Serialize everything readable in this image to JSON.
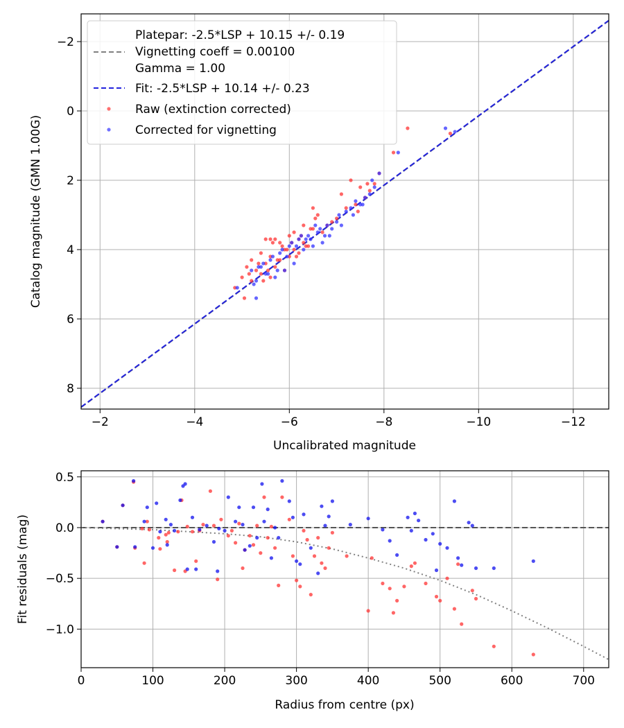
{
  "chart_data": [
    {
      "type": "scatter",
      "title": "",
      "xlabel": "Uncalibrated magnitude",
      "ylabel": "Catalog magnitude (GMN 1.00G)",
      "xlim": [
        -1.6,
        -12.75
      ],
      "ylim": [
        8.6,
        -2.8
      ],
      "xticks": [
        -2,
        -4,
        -6,
        -8,
        -10,
        -12
      ],
      "xtick_labels": [
        "−2",
        "−4",
        "−6",
        "−8",
        "−10",
        "−12"
      ],
      "yticks": [
        -2,
        0,
        2,
        4,
        6,
        8
      ],
      "ytick_labels": [
        "−2",
        "0",
        "2",
        "4",
        "6",
        "8"
      ],
      "grid": true,
      "legend": {
        "placement": "top-left",
        "entries": [
          {
            "label_lines": [
              "Platepar: -2.5*LSP + 10.15 +/- 0.19",
              "Vignetting coeff = 0.00100",
              "Gamma = 1.00"
            ],
            "style": "dashed",
            "color": "#808080"
          },
          {
            "label_lines": [
              "Fit: -2.5*LSP + 10.14 +/- 0.23"
            ],
            "style": "dashed",
            "color": "#2222dd"
          },
          {
            "label_lines": [
              "Raw (extinction corrected)"
            ],
            "style": "marker",
            "color": "#ff3333"
          },
          {
            "label_lines": [
              "Corrected for vignetting"
            ],
            "style": "marker",
            "color": "#3333ff"
          }
        ]
      },
      "series": [
        {
          "name": "Platepar",
          "kind": "line",
          "color": "#808080",
          "dash": "dashed",
          "x": [
            -1.6,
            -12.75
          ],
          "y": [
            8.55,
            -2.6
          ]
        },
        {
          "name": "Fit",
          "kind": "line",
          "color": "#2222dd",
          "dash": "dashed",
          "x": [
            -1.6,
            -12.75
          ],
          "y": [
            8.54,
            -2.61
          ]
        },
        {
          "name": "Raw (extinction corrected)",
          "kind": "scatter",
          "color": "#ff3333",
          "x": [
            -5.0,
            -5.1,
            -5.2,
            -5.2,
            -5.3,
            -5.4,
            -5.4,
            -5.5,
            -5.5,
            -5.6,
            -5.6,
            -5.7,
            -5.7,
            -5.8,
            -5.8,
            -5.9,
            -5.9,
            -6.0,
            -6.0,
            -6.1,
            -6.1,
            -6.2,
            -6.2,
            -6.3,
            -6.3,
            -6.4,
            -6.5,
            -6.5,
            -6.6,
            -6.7,
            -6.8,
            -6.9,
            -7.0,
            -7.2,
            -7.3,
            -7.4,
            -7.5,
            -7.6,
            -7.7,
            -7.8,
            -7.9,
            -8.2,
            -8.5,
            -9.4,
            -5.05,
            -5.15,
            -5.35,
            -5.45,
            -5.55,
            -5.65,
            -5.75,
            -5.85,
            -5.95,
            -6.05,
            -6.15,
            -6.25,
            -6.35,
            -6.45,
            -6.55,
            -7.1,
            -7.45,
            -7.65,
            -4.85,
            -5.6
          ],
          "y": [
            4.8,
            4.5,
            4.3,
            4.9,
            4.6,
            4.1,
            4.7,
            3.7,
            4.4,
            4.2,
            4.8,
            3.7,
            4.5,
            3.8,
            4.3,
            4.0,
            4.6,
            3.6,
            4.2,
            3.5,
            4.0,
            3.7,
            4.1,
            3.3,
            3.8,
            3.9,
            2.8,
            3.4,
            3.0,
            3.5,
            3.3,
            3.2,
            3.1,
            2.8,
            2.0,
            2.7,
            2.2,
            2.5,
            2.3,
            2.1,
            1.8,
            1.2,
            0.5,
            0.65,
            5.4,
            4.7,
            4.4,
            4.9,
            4.6,
            3.8,
            4.3,
            3.9,
            4.0,
            3.8,
            4.2,
            3.6,
            3.9,
            3.4,
            3.1,
            2.4,
            2.9,
            2.1,
            5.1,
            3.7
          ]
        },
        {
          "name": "Corrected for vignetting",
          "kind": "scatter",
          "color": "#3333ff",
          "x": [
            -5.2,
            -5.3,
            -5.4,
            -5.5,
            -5.6,
            -5.7,
            -5.8,
            -5.9,
            -6.0,
            -6.1,
            -6.2,
            -6.3,
            -6.4,
            -6.5,
            -6.6,
            -6.7,
            -6.8,
            -6.9,
            -7.0,
            -7.1,
            -7.2,
            -7.3,
            -7.4,
            -7.5,
            -7.6,
            -7.7,
            -7.8,
            -7.9,
            -8.3,
            -9.3,
            -9.5,
            -5.25,
            -5.45,
            -5.65,
            -5.85,
            -6.05,
            -6.25,
            -6.45,
            -6.65,
            -6.85,
            -7.05,
            -7.35,
            -7.55,
            -7.75,
            -5.35,
            -5.55,
            -5.75,
            -5.95,
            -6.15,
            -6.35,
            -6.55,
            -6.75,
            -4.9,
            -5.3
          ],
          "y": [
            4.6,
            4.9,
            4.5,
            4.7,
            4.3,
            4.8,
            4.1,
            4.6,
            3.9,
            4.4,
            3.7,
            4.0,
            3.6,
            3.9,
            3.5,
            3.8,
            3.3,
            3.4,
            3.2,
            3.3,
            2.9,
            2.8,
            2.6,
            2.7,
            2.5,
            2.4,
            2.2,
            1.8,
            1.2,
            0.5,
            0.6,
            5.0,
            4.4,
            4.2,
            4.0,
            3.8,
            3.6,
            3.7,
            3.4,
            3.6,
            3.0,
            3.0,
            2.7,
            2.0,
            4.5,
            4.7,
            4.6,
            4.2,
            3.9,
            3.7,
            3.3,
            3.6,
            5.1,
            5.4
          ]
        }
      ]
    },
    {
      "type": "scatter",
      "title": "",
      "xlabel": "Radius from centre (px)",
      "ylabel": "Fit residuals (mag)",
      "xlim": [
        0,
        735
      ],
      "ylim": [
        -1.38,
        0.56
      ],
      "xticks": [
        0,
        100,
        200,
        300,
        400,
        500,
        600,
        700
      ],
      "xtick_labels": [
        "0",
        "100",
        "200",
        "300",
        "400",
        "500",
        "600",
        "700"
      ],
      "yticks": [
        0.5,
        0.0,
        -0.5,
        -1.0
      ],
      "ytick_labels": [
        "0.5",
        "0.0",
        "−0.5",
        "−1.0"
      ],
      "grid": true,
      "series": [
        {
          "name": "zero",
          "kind": "line",
          "color": "#555555",
          "dash": "dashed",
          "x": [
            0,
            735
          ],
          "y": [
            0,
            0
          ]
        },
        {
          "name": "vignetting model",
          "kind": "line",
          "color": "#808080",
          "dash": "dotted",
          "x": [
            0,
            100,
            200,
            250,
            300,
            350,
            400,
            450,
            500,
            550,
            600,
            650,
            700,
            735
          ],
          "y": [
            0.0,
            -0.02,
            -0.06,
            -0.09,
            -0.14,
            -0.21,
            -0.3,
            -0.4,
            -0.52,
            -0.66,
            -0.82,
            -0.99,
            -1.17,
            -1.3
          ]
        },
        {
          "name": "Raw (extinction corrected)",
          "kind": "scatter",
          "color": "#ff3333",
          "x": [
            30,
            50,
            58,
            73,
            75,
            85,
            88,
            92,
            95,
            108,
            110,
            118,
            120,
            122,
            130,
            135,
            140,
            145,
            148,
            155,
            160,
            165,
            170,
            180,
            185,
            190,
            195,
            205,
            210,
            215,
            220,
            225,
            228,
            235,
            240,
            245,
            250,
            255,
            260,
            265,
            270,
            275,
            280,
            290,
            295,
            300,
            305,
            310,
            315,
            320,
            325,
            330,
            335,
            340,
            345,
            350,
            370,
            400,
            405,
            420,
            430,
            435,
            440,
            450,
            460,
            465,
            480,
            495,
            500,
            510,
            520,
            525,
            530,
            545,
            550,
            575,
            630
          ],
          "x_": [],
          "y": [
            0.06,
            -0.19,
            0.22,
            0.45,
            -0.2,
            -0.01,
            -0.35,
            0.06,
            -0.02,
            -0.1,
            -0.21,
            -0.07,
            -0.14,
            -0.05,
            -0.42,
            -0.04,
            0.27,
            -0.43,
            0.01,
            -0.04,
            -0.33,
            -0.03,
            0.03,
            0.36,
            0.02,
            -0.51,
            0.08,
            -0.08,
            -0.03,
            -0.15,
            0.04,
            -0.4,
            -0.22,
            -0.08,
            -0.17,
            0.02,
            -0.25,
            0.3,
            -0.1,
            0.01,
            -0.2,
            -0.57,
            0.3,
            0.08,
            -0.28,
            -0.52,
            -0.58,
            -0.03,
            -0.12,
            -0.66,
            -0.28,
            -0.1,
            -0.35,
            -0.4,
            -0.2,
            -0.05,
            -0.28,
            -0.82,
            -0.3,
            -0.55,
            -0.6,
            -0.84,
            -0.72,
            -0.58,
            -0.38,
            -0.35,
            -0.55,
            -0.68,
            -0.72,
            -0.5,
            -0.8,
            -0.36,
            -0.95,
            -0.62,
            -0.7,
            -1.17,
            -1.25
          ]
        },
        {
          "name": "Corrected for vignetting",
          "kind": "scatter",
          "color": "#1010ee",
          "x": [
            30,
            50,
            58,
            73,
            75,
            88,
            92,
            100,
            105,
            110,
            118,
            120,
            125,
            130,
            138,
            142,
            145,
            148,
            155,
            160,
            165,
            175,
            185,
            190,
            192,
            200,
            205,
            215,
            220,
            225,
            228,
            235,
            240,
            245,
            252,
            255,
            260,
            265,
            270,
            275,
            280,
            290,
            295,
            300,
            305,
            310,
            320,
            330,
            335,
            340,
            345,
            350,
            375,
            400,
            420,
            430,
            440,
            455,
            460,
            465,
            470,
            480,
            490,
            495,
            500,
            510,
            520,
            525,
            530,
            540,
            545,
            550,
            575,
            630
          ],
          "y": [
            0.06,
            -0.19,
            0.22,
            0.46,
            -0.19,
            0.06,
            0.2,
            -0.2,
            0.24,
            -0.04,
            0.08,
            -0.17,
            0.03,
            -0.03,
            0.27,
            0.41,
            0.43,
            -0.41,
            0.1,
            -0.41,
            -0.02,
            0.02,
            -0.14,
            -0.43,
            -0.01,
            -0.03,
            0.3,
            0.06,
            0.2,
            0.03,
            -0.22,
            -0.18,
            0.2,
            -0.1,
            0.43,
            0.06,
            0.18,
            -0.3,
            0.0,
            -0.1,
            0.46,
            0.26,
            0.1,
            -0.33,
            -0.36,
            0.13,
            -0.2,
            -0.45,
            0.21,
            0.02,
            0.11,
            0.26,
            0.03,
            0.09,
            -0.02,
            -0.13,
            -0.27,
            0.1,
            -0.03,
            0.14,
            0.07,
            -0.12,
            -0.06,
            -0.42,
            -0.16,
            -0.2,
            0.26,
            -0.3,
            -0.37,
            0.05,
            0.02,
            -0.4,
            -0.4,
            -0.33
          ]
        }
      ]
    }
  ]
}
